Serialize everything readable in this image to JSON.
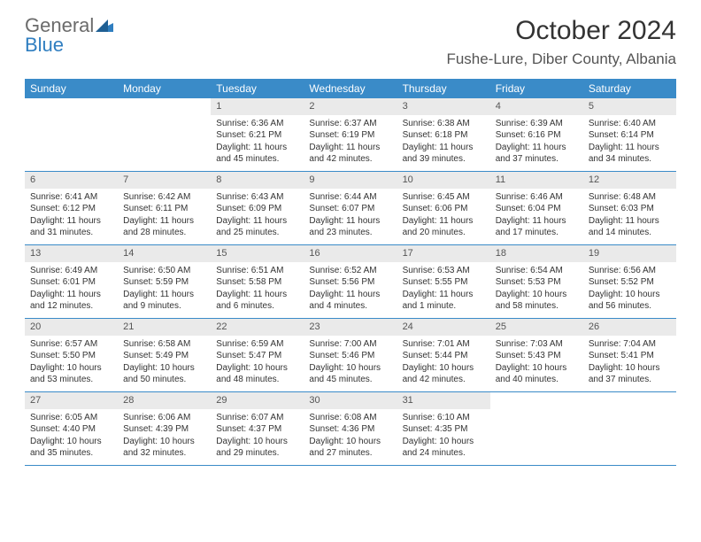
{
  "logo": {
    "word1": "General",
    "word2": "Blue"
  },
  "title": "October 2024",
  "location": "Fushe-Lure, Diber County, Albania",
  "headers": [
    "Sunday",
    "Monday",
    "Tuesday",
    "Wednesday",
    "Thursday",
    "Friday",
    "Saturday"
  ],
  "colors": {
    "header_bg": "#3a8bc8",
    "header_fg": "#ffffff",
    "rule": "#3a8bc8",
    "daynum_bg": "#eaeaea",
    "logo_gray": "#6b6b6b",
    "logo_blue": "#2f7ec0"
  },
  "weeks": [
    [
      null,
      null,
      {
        "n": "1",
        "sr": "Sunrise: 6:36 AM",
        "ss": "Sunset: 6:21 PM",
        "dl": "Daylight: 11 hours and 45 minutes."
      },
      {
        "n": "2",
        "sr": "Sunrise: 6:37 AM",
        "ss": "Sunset: 6:19 PM",
        "dl": "Daylight: 11 hours and 42 minutes."
      },
      {
        "n": "3",
        "sr": "Sunrise: 6:38 AM",
        "ss": "Sunset: 6:18 PM",
        "dl": "Daylight: 11 hours and 39 minutes."
      },
      {
        "n": "4",
        "sr": "Sunrise: 6:39 AM",
        "ss": "Sunset: 6:16 PM",
        "dl": "Daylight: 11 hours and 37 minutes."
      },
      {
        "n": "5",
        "sr": "Sunrise: 6:40 AM",
        "ss": "Sunset: 6:14 PM",
        "dl": "Daylight: 11 hours and 34 minutes."
      }
    ],
    [
      {
        "n": "6",
        "sr": "Sunrise: 6:41 AM",
        "ss": "Sunset: 6:12 PM",
        "dl": "Daylight: 11 hours and 31 minutes."
      },
      {
        "n": "7",
        "sr": "Sunrise: 6:42 AM",
        "ss": "Sunset: 6:11 PM",
        "dl": "Daylight: 11 hours and 28 minutes."
      },
      {
        "n": "8",
        "sr": "Sunrise: 6:43 AM",
        "ss": "Sunset: 6:09 PM",
        "dl": "Daylight: 11 hours and 25 minutes."
      },
      {
        "n": "9",
        "sr": "Sunrise: 6:44 AM",
        "ss": "Sunset: 6:07 PM",
        "dl": "Daylight: 11 hours and 23 minutes."
      },
      {
        "n": "10",
        "sr": "Sunrise: 6:45 AM",
        "ss": "Sunset: 6:06 PM",
        "dl": "Daylight: 11 hours and 20 minutes."
      },
      {
        "n": "11",
        "sr": "Sunrise: 6:46 AM",
        "ss": "Sunset: 6:04 PM",
        "dl": "Daylight: 11 hours and 17 minutes."
      },
      {
        "n": "12",
        "sr": "Sunrise: 6:48 AM",
        "ss": "Sunset: 6:03 PM",
        "dl": "Daylight: 11 hours and 14 minutes."
      }
    ],
    [
      {
        "n": "13",
        "sr": "Sunrise: 6:49 AM",
        "ss": "Sunset: 6:01 PM",
        "dl": "Daylight: 11 hours and 12 minutes."
      },
      {
        "n": "14",
        "sr": "Sunrise: 6:50 AM",
        "ss": "Sunset: 5:59 PM",
        "dl": "Daylight: 11 hours and 9 minutes."
      },
      {
        "n": "15",
        "sr": "Sunrise: 6:51 AM",
        "ss": "Sunset: 5:58 PM",
        "dl": "Daylight: 11 hours and 6 minutes."
      },
      {
        "n": "16",
        "sr": "Sunrise: 6:52 AM",
        "ss": "Sunset: 5:56 PM",
        "dl": "Daylight: 11 hours and 4 minutes."
      },
      {
        "n": "17",
        "sr": "Sunrise: 6:53 AM",
        "ss": "Sunset: 5:55 PM",
        "dl": "Daylight: 11 hours and 1 minute."
      },
      {
        "n": "18",
        "sr": "Sunrise: 6:54 AM",
        "ss": "Sunset: 5:53 PM",
        "dl": "Daylight: 10 hours and 58 minutes."
      },
      {
        "n": "19",
        "sr": "Sunrise: 6:56 AM",
        "ss": "Sunset: 5:52 PM",
        "dl": "Daylight: 10 hours and 56 minutes."
      }
    ],
    [
      {
        "n": "20",
        "sr": "Sunrise: 6:57 AM",
        "ss": "Sunset: 5:50 PM",
        "dl": "Daylight: 10 hours and 53 minutes."
      },
      {
        "n": "21",
        "sr": "Sunrise: 6:58 AM",
        "ss": "Sunset: 5:49 PM",
        "dl": "Daylight: 10 hours and 50 minutes."
      },
      {
        "n": "22",
        "sr": "Sunrise: 6:59 AM",
        "ss": "Sunset: 5:47 PM",
        "dl": "Daylight: 10 hours and 48 minutes."
      },
      {
        "n": "23",
        "sr": "Sunrise: 7:00 AM",
        "ss": "Sunset: 5:46 PM",
        "dl": "Daylight: 10 hours and 45 minutes."
      },
      {
        "n": "24",
        "sr": "Sunrise: 7:01 AM",
        "ss": "Sunset: 5:44 PM",
        "dl": "Daylight: 10 hours and 42 minutes."
      },
      {
        "n": "25",
        "sr": "Sunrise: 7:03 AM",
        "ss": "Sunset: 5:43 PM",
        "dl": "Daylight: 10 hours and 40 minutes."
      },
      {
        "n": "26",
        "sr": "Sunrise: 7:04 AM",
        "ss": "Sunset: 5:41 PM",
        "dl": "Daylight: 10 hours and 37 minutes."
      }
    ],
    [
      {
        "n": "27",
        "sr": "Sunrise: 6:05 AM",
        "ss": "Sunset: 4:40 PM",
        "dl": "Daylight: 10 hours and 35 minutes."
      },
      {
        "n": "28",
        "sr": "Sunrise: 6:06 AM",
        "ss": "Sunset: 4:39 PM",
        "dl": "Daylight: 10 hours and 32 minutes."
      },
      {
        "n": "29",
        "sr": "Sunrise: 6:07 AM",
        "ss": "Sunset: 4:37 PM",
        "dl": "Daylight: 10 hours and 29 minutes."
      },
      {
        "n": "30",
        "sr": "Sunrise: 6:08 AM",
        "ss": "Sunset: 4:36 PM",
        "dl": "Daylight: 10 hours and 27 minutes."
      },
      {
        "n": "31",
        "sr": "Sunrise: 6:10 AM",
        "ss": "Sunset: 4:35 PM",
        "dl": "Daylight: 10 hours and 24 minutes."
      },
      null,
      null
    ]
  ]
}
